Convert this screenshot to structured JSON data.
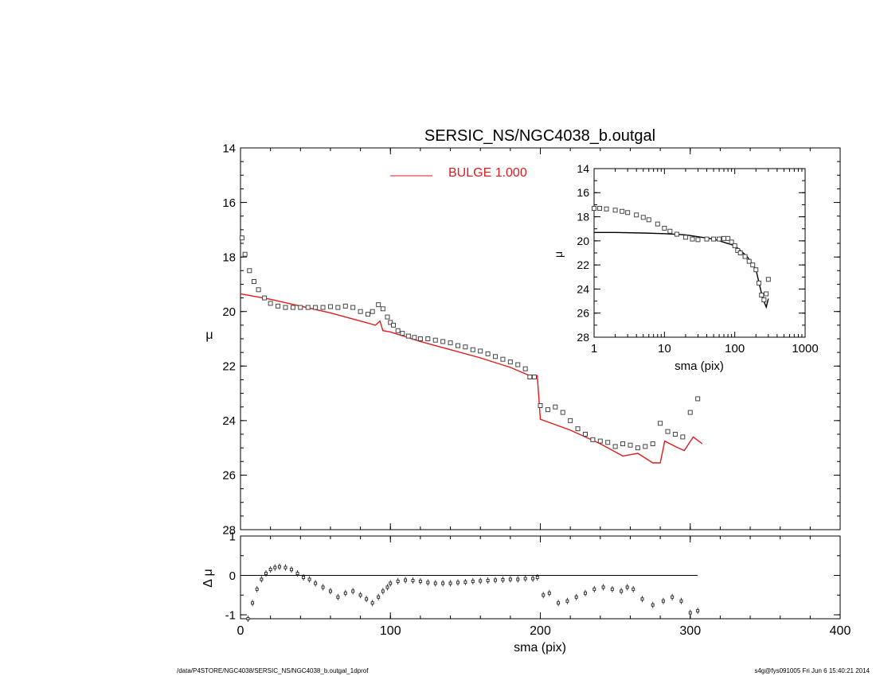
{
  "title": "SERSIC_NS/NGC4038_b.outgal",
  "legend": {
    "label": "BULGE  1.000",
    "color": "#e31a1c"
  },
  "footer": {
    "left": "/data/P4STORE/NGC4038/SERSIC_NS/NGC4038_b.outgal_1dprof",
    "right": "s4g@fys091005  Fri Jun  6 15:40:21 2014"
  },
  "axes": {
    "main": {
      "ylabel": "μ",
      "ylim": [
        28,
        14
      ],
      "yticks": [
        "14",
        "16",
        "18",
        "20",
        "22",
        "24",
        "26",
        "28"
      ]
    },
    "resid": {
      "ylabel": "Δ μ",
      "ylim": [
        -1.1,
        1.0
      ],
      "yticks": [
        "1",
        "0",
        "-1"
      ]
    },
    "x": {
      "xlabel": "sma (pix)",
      "xlim": [
        0,
        400
      ],
      "xticks": [
        "0",
        "100",
        "200",
        "300",
        "400"
      ]
    },
    "inset": {
      "ylabel": "μ",
      "xlabel": "sma (pix)",
      "xscale": "log",
      "xlim": [
        1,
        1000
      ],
      "ylim": [
        28,
        14
      ],
      "xticks": [
        "1",
        "10",
        "100",
        "1000"
      ],
      "yticks": [
        "14",
        "16",
        "18",
        "20",
        "22",
        "24",
        "26",
        "28"
      ]
    }
  },
  "chart_data": [
    {
      "type": "scatter",
      "panel": "main",
      "title": "SERSIC_NS/NGC4038_b.outgal",
      "xlabel": "sma (pix)",
      "ylabel": "μ",
      "xlim": [
        0,
        400
      ],
      "ylim": [
        28,
        14
      ],
      "series": [
        {
          "style": "squares",
          "x": [
            1,
            3,
            6,
            9,
            12,
            16,
            20,
            25,
            30,
            35,
            40,
            45,
            50,
            55,
            60,
            65,
            70,
            75,
            80,
            85,
            88,
            92,
            95,
            98,
            100,
            102,
            105,
            108,
            112,
            116,
            120,
            125,
            130,
            135,
            140,
            145,
            150,
            155,
            160,
            165,
            170,
            175,
            180,
            185,
            190,
            193,
            196,
            200,
            205,
            210,
            215,
            220,
            225,
            230,
            235,
            240,
            245,
            250,
            255,
            260,
            265,
            270,
            275,
            280,
            285,
            290,
            295,
            300,
            305
          ],
          "y": [
            17.3,
            17.9,
            18.5,
            18.9,
            19.2,
            19.5,
            19.7,
            19.8,
            19.85,
            19.85,
            19.85,
            19.85,
            19.85,
            19.85,
            19.82,
            19.85,
            19.8,
            19.85,
            20.0,
            20.1,
            20.0,
            19.75,
            19.9,
            20.2,
            20.4,
            20.5,
            20.7,
            20.8,
            20.9,
            20.95,
            21.0,
            21.0,
            21.05,
            21.1,
            21.15,
            21.25,
            21.3,
            21.4,
            21.45,
            21.55,
            21.65,
            21.75,
            21.85,
            21.95,
            22.1,
            22.4,
            22.4,
            23.45,
            23.6,
            23.5,
            23.7,
            24.0,
            24.3,
            24.5,
            24.7,
            24.75,
            24.8,
            24.95,
            24.85,
            24.9,
            25.0,
            24.95,
            24.85,
            24.1,
            24.4,
            24.5,
            24.6,
            23.7,
            23.2
          ]
        },
        {
          "name": "BULGE  1.000",
          "style": "line",
          "x": [
            0,
            20,
            40,
            60,
            80,
            90,
            93,
            95,
            100,
            120,
            140,
            160,
            180,
            195,
            198,
            200,
            220,
            240,
            255,
            265,
            275,
            280,
            283,
            290,
            296,
            302,
            308
          ],
          "y": [
            19.35,
            19.55,
            19.8,
            20.05,
            20.35,
            20.5,
            20.35,
            20.7,
            20.75,
            21.1,
            21.4,
            21.7,
            22.05,
            22.4,
            22.35,
            23.95,
            24.35,
            24.85,
            25.3,
            25.2,
            25.55,
            25.55,
            24.75,
            24.95,
            25.1,
            24.6,
            24.85
          ]
        }
      ]
    },
    {
      "type": "scatter",
      "panel": "residual",
      "xlabel": "sma (pix)",
      "ylabel": "Δ μ",
      "xlim": [
        0,
        400
      ],
      "ylim": [
        -1.1,
        1.0
      ],
      "series": [
        {
          "style": "points_with_errorbars",
          "x": [
            5,
            8,
            11,
            14,
            17,
            20,
            23,
            26,
            30,
            34,
            38,
            42,
            46,
            50,
            55,
            60,
            65,
            70,
            75,
            80,
            84,
            88,
            92,
            95,
            98,
            100,
            105,
            110,
            115,
            120,
            125,
            130,
            135,
            140,
            145,
            150,
            155,
            160,
            165,
            170,
            175,
            180,
            185,
            190,
            195,
            198,
            202,
            206,
            212,
            218,
            224,
            230,
            236,
            242,
            248,
            254,
            258,
            262,
            268,
            275,
            282,
            288,
            294,
            300,
            305
          ],
          "y": [
            -1.1,
            -0.7,
            -0.35,
            -0.1,
            0.05,
            0.15,
            0.2,
            0.22,
            0.2,
            0.15,
            0.05,
            -0.05,
            -0.1,
            -0.2,
            -0.3,
            -0.4,
            -0.55,
            -0.45,
            -0.4,
            -0.5,
            -0.6,
            -0.7,
            -0.55,
            -0.4,
            -0.3,
            -0.2,
            -0.15,
            -0.12,
            -0.13,
            -0.15,
            -0.18,
            -0.2,
            -0.2,
            -0.2,
            -0.18,
            -0.17,
            -0.15,
            -0.14,
            -0.13,
            -0.12,
            -0.11,
            -0.1,
            -0.1,
            -0.08,
            -0.08,
            -0.05,
            -0.5,
            -0.45,
            -0.7,
            -0.65,
            -0.55,
            -0.45,
            -0.35,
            -0.3,
            -0.35,
            -0.4,
            -0.3,
            -0.35,
            -0.6,
            -0.75,
            -0.65,
            -0.55,
            -0.65,
            -0.95,
            -0.9
          ]
        },
        {
          "style": "reference_line",
          "y": 0,
          "x": [
            0,
            305
          ]
        }
      ]
    },
    {
      "type": "scatter",
      "panel": "inset",
      "xscale": "log",
      "xlabel": "sma (pix)",
      "ylabel": "μ",
      "xlim": [
        1,
        1000
      ],
      "ylim": [
        28,
        14
      ],
      "series": [
        {
          "style": "squares",
          "x": [
            1,
            1.2,
            1.5,
            2,
            2.5,
            3,
            4,
            5,
            6,
            8,
            10,
            12,
            15,
            20,
            25,
            30,
            40,
            50,
            60,
            70,
            80,
            90,
            100,
            110,
            120,
            140,
            160,
            180,
            200,
            220,
            240,
            260,
            280,
            300
          ],
          "y": [
            17.3,
            17.3,
            17.35,
            17.45,
            17.55,
            17.65,
            17.85,
            18.05,
            18.25,
            18.6,
            18.95,
            19.2,
            19.45,
            19.7,
            19.85,
            19.9,
            19.85,
            19.85,
            19.85,
            19.8,
            19.8,
            20.1,
            20.4,
            20.8,
            21.0,
            21.3,
            21.7,
            22.0,
            22.4,
            23.5,
            24.5,
            24.9,
            24.4,
            23.2
          ]
        },
        {
          "style": "line",
          "x": [
            1,
            2,
            5,
            10,
            20,
            50,
            100,
            150,
            200,
            250,
            280,
            300
          ],
          "y": [
            19.3,
            19.3,
            19.35,
            19.4,
            19.5,
            19.85,
            20.4,
            21.3,
            22.4,
            24.8,
            25.5,
            24.8
          ]
        }
      ]
    }
  ]
}
